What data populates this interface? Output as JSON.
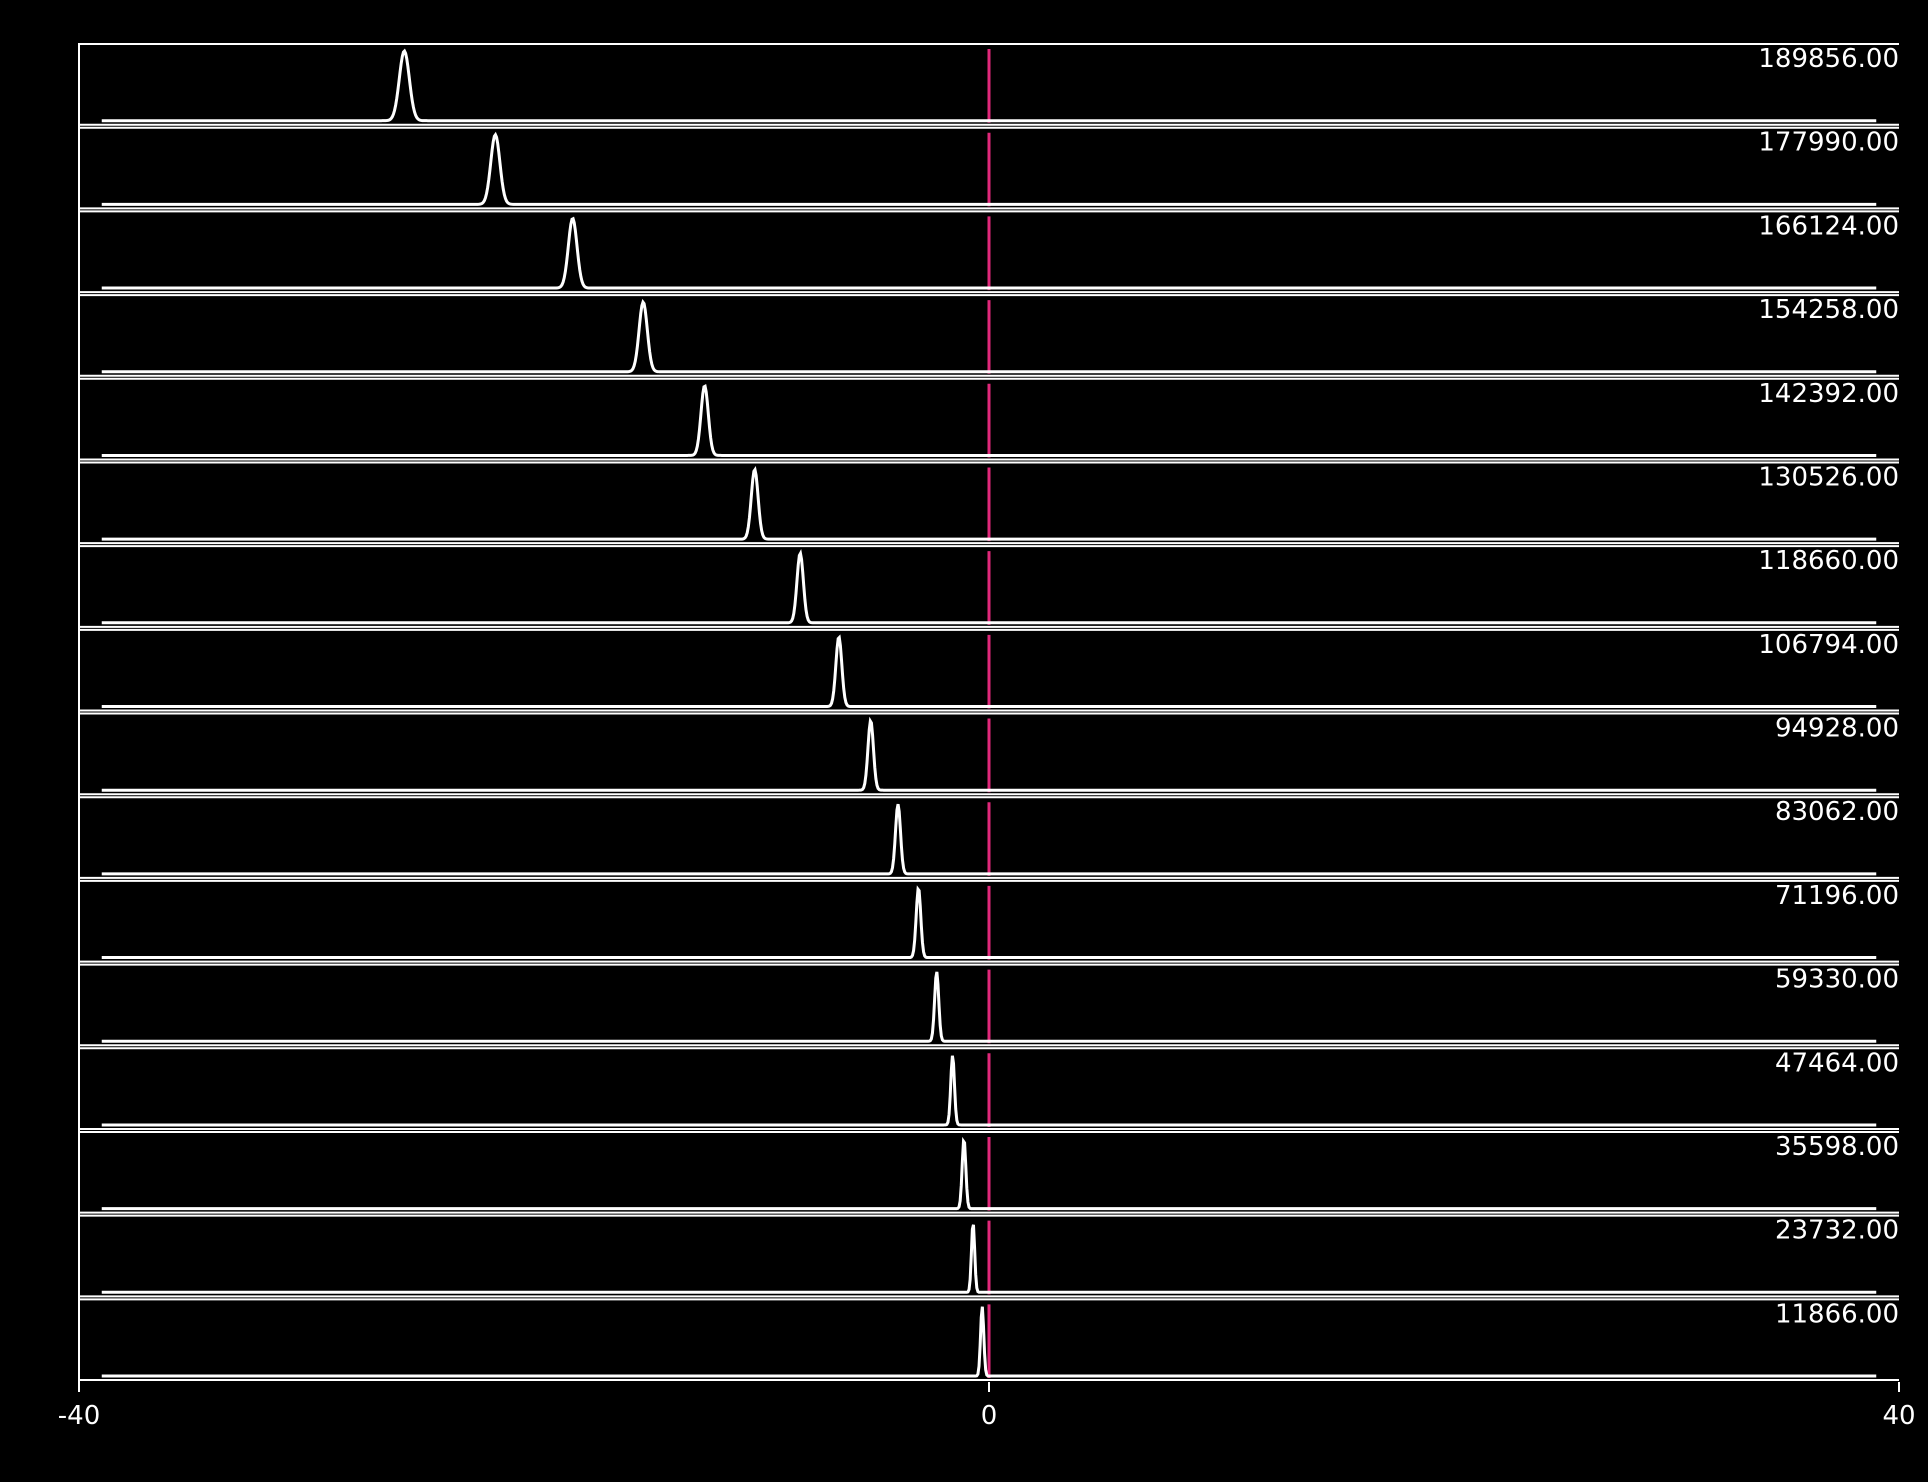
{
  "chart_data": {
    "type": "ridgeline",
    "xlim": [
      -40,
      40
    ],
    "xticks": [
      -40,
      0,
      40
    ],
    "line_color": "#ffffff",
    "reference_line": 0,
    "reference_color": "#e0287a",
    "series": [
      {
        "name": "189856.00",
        "peak": -25.7,
        "width": 0.22
      },
      {
        "name": "177990.00",
        "peak": -21.7,
        "width": 0.2
      },
      {
        "name": "166124.00",
        "peak": -18.3,
        "width": 0.19
      },
      {
        "name": "154258.00",
        "peak": -15.2,
        "width": 0.18
      },
      {
        "name": "142392.00",
        "peak": -12.5,
        "width": 0.16
      },
      {
        "name": "130526.00",
        "peak": -10.3,
        "width": 0.15
      },
      {
        "name": "118660.00",
        "peak": -8.3,
        "width": 0.14
      },
      {
        "name": "106794.00",
        "peak": -6.6,
        "width": 0.13
      },
      {
        "name": "94928.00",
        "peak": -5.2,
        "width": 0.12
      },
      {
        "name": "83062.00",
        "peak": -4.0,
        "width": 0.11
      },
      {
        "name": "71196.00",
        "peak": -3.1,
        "width": 0.1
      },
      {
        "name": "59330.00",
        "peak": -2.3,
        "width": 0.09
      },
      {
        "name": "47464.00",
        "peak": -1.6,
        "width": 0.08
      },
      {
        "name": "35598.00",
        "peak": -1.1,
        "width": 0.08
      },
      {
        "name": "23732.00",
        "peak": -0.7,
        "width": 0.07
      },
      {
        "name": "11866.00",
        "peak": -0.3,
        "width": 0.07
      }
    ]
  }
}
